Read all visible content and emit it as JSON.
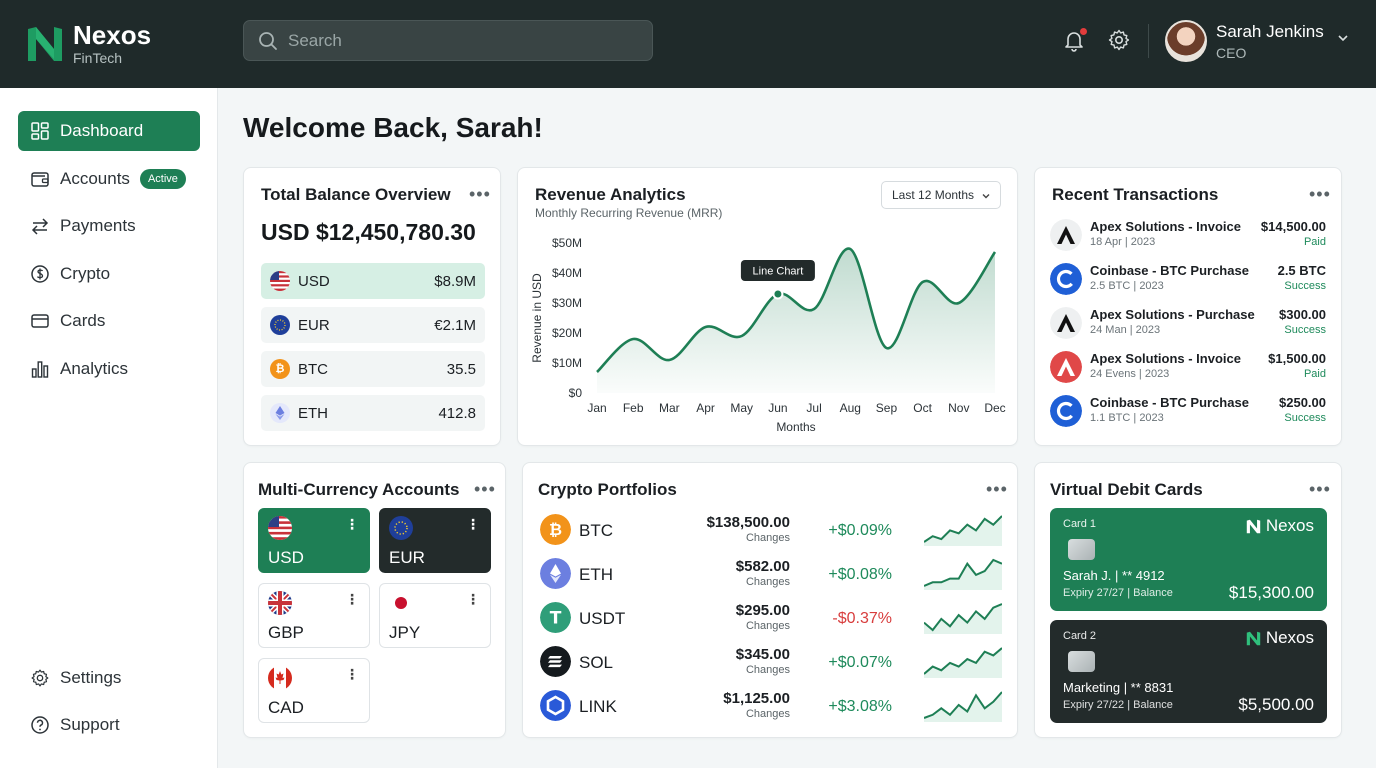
{
  "app": {
    "name": "Nexos",
    "subtitle": "FinTech"
  },
  "search": {
    "placeholder": "Search"
  },
  "user": {
    "name": "Sarah Jenkins",
    "role": "CEO"
  },
  "sidebar": {
    "items": [
      {
        "label": "Dashboard",
        "icon": "dashboard-icon",
        "active": true
      },
      {
        "label": "Accounts",
        "icon": "wallet-icon",
        "badge": "Active"
      },
      {
        "label": "Payments",
        "icon": "transfer-icon"
      },
      {
        "label": "Crypto",
        "icon": "dollar-circle-icon"
      },
      {
        "label": "Cards",
        "icon": "card-icon"
      },
      {
        "label": "Analytics",
        "icon": "bar-chart-icon"
      }
    ],
    "bottom": [
      {
        "label": "Settings",
        "icon": "gear-icon"
      },
      {
        "label": "Support",
        "icon": "help-icon"
      }
    ]
  },
  "welcome": "Welcome Back, Sarah!",
  "balance": {
    "title": "Total Balance Overview",
    "total": "USD $12,450,780.30",
    "rows": [
      {
        "currency": "USD",
        "value": "$8.9M"
      },
      {
        "currency": "EUR",
        "value": "€2.1M"
      },
      {
        "currency": "BTC",
        "value": "35.5"
      },
      {
        "currency": "ETH",
        "value": "412.8"
      }
    ]
  },
  "revenue": {
    "title": "Revenue Analytics",
    "subtitle": "Monthly Recurring Revenue (MRR)",
    "range": "Last 12 Months",
    "tooltip": "Line Chart"
  },
  "chart_data": {
    "type": "line",
    "x": [
      "Jan",
      "Feb",
      "Mar",
      "Apr",
      "May",
      "Jun",
      "Jul",
      "Aug",
      "Sep",
      "Oct",
      "Nov",
      "Dec"
    ],
    "series": [
      {
        "values": [
          7,
          18,
          11,
          22,
          19,
          33,
          28,
          48,
          15,
          37,
          30,
          47
        ]
      }
    ],
    "xlabel": "Months",
    "ylabel": "Revenue in USD",
    "yticks": [
      "$0",
      "$10M",
      "$20M",
      "$30M",
      "$40M",
      "$50M"
    ],
    "ylim": [
      0,
      50
    ],
    "grid": false,
    "color": "#1e7f55"
  },
  "transactions": {
    "title": "Recent Transactions",
    "items": [
      {
        "name": "Apex Solutions - Invoice",
        "date": "18 Apr | 2023",
        "amount": "$14,500.00",
        "status": "Paid",
        "icon": "apex-logo-icon",
        "color": "#eef0f1"
      },
      {
        "name": "Coinbase - BTC Purchase",
        "date": "2.5 BTC | 2023",
        "amount": "2.5 BTC",
        "status": "Success",
        "icon": "coinbase-logo-icon",
        "color": "#1f5fd6"
      },
      {
        "name": "Apex Solutions - Purchase",
        "date": "24 Man | 2023",
        "amount": "$300.00",
        "status": "Success",
        "icon": "apex-logo-icon",
        "color": "#eef0f1"
      },
      {
        "name": "Apex Solutions - Invoice",
        "date": "24 Evens | 2023",
        "amount": "$1,500.00",
        "status": "Paid",
        "icon": "apex-logo-icon",
        "color": "#e04848"
      },
      {
        "name": "Coinbase - BTC Purchase",
        "date": "1.1 BTC | 2023",
        "amount": "$250.00",
        "status": "Success",
        "icon": "coinbase-logo-icon",
        "color": "#1f5fd6"
      }
    ]
  },
  "accounts": {
    "title": "Multi-Currency Accounts",
    "tiles": [
      {
        "code": "USD",
        "flag": "us-flag-icon",
        "style": "green"
      },
      {
        "code": "EUR",
        "flag": "eu-flag-icon",
        "style": "dark"
      },
      {
        "code": "GBP",
        "flag": "uk-flag-icon",
        "style": "light"
      },
      {
        "code": "JPY",
        "flag": "jp-flag-icon",
        "style": "light"
      },
      {
        "code": "CAD",
        "flag": "ca-flag-icon",
        "style": "light"
      }
    ]
  },
  "crypto": {
    "title": "Crypto Portfolios",
    "changes_label": "Changes",
    "rows": [
      {
        "symbol": "BTC",
        "price": "$138,500.00",
        "change": "+$0.09%",
        "color": "#f2931a",
        "positive": true,
        "trend": [
          3,
          5,
          4,
          7,
          6,
          9,
          7,
          11,
          9,
          12
        ]
      },
      {
        "symbol": "ETH",
        "price": "$582.00",
        "change": "+$0.08%",
        "color": "#6c7fe0",
        "positive": true,
        "trend": [
          2,
          3,
          3,
          4,
          4,
          8,
          5,
          6,
          9,
          8
        ]
      },
      {
        "symbol": "USDT",
        "price": "$295.00",
        "change": "-$0.37%",
        "color": "#2f9e79",
        "positive": false,
        "trend": [
          6,
          4,
          7,
          5,
          8,
          6,
          9,
          7,
          10,
          11
        ]
      },
      {
        "symbol": "SOL",
        "price": "$345.00",
        "change": "+$0.07%",
        "color": "#151a1e",
        "positive": true,
        "trend": [
          2,
          4,
          3,
          5,
          4,
          6,
          5,
          8,
          7,
          9
        ]
      },
      {
        "symbol": "LINK",
        "price": "$1,125.00",
        "change": "+$3.08%",
        "color": "#2a5ad8",
        "positive": true,
        "trend": [
          2,
          3,
          5,
          3,
          6,
          4,
          9,
          5,
          7,
          10
        ]
      }
    ],
    "positive_color": "#1e8a5b",
    "negative_color": "#d83d3d"
  },
  "vcards": {
    "title": "Virtual Debit Cards",
    "cards": [
      {
        "label": "Card 1",
        "brand": "Nexos",
        "holder": "Sarah J. | ** 4912",
        "expiry": "Expiry 27/27 | Balance",
        "balance": "$15,300.00",
        "style": "green"
      },
      {
        "label": "Card 2",
        "brand": "Nexos",
        "holder": "Marketing | ** 8831",
        "expiry": "Expiry 27/22 | Balance",
        "balance": "$5,500.00",
        "style": "dark"
      }
    ]
  }
}
